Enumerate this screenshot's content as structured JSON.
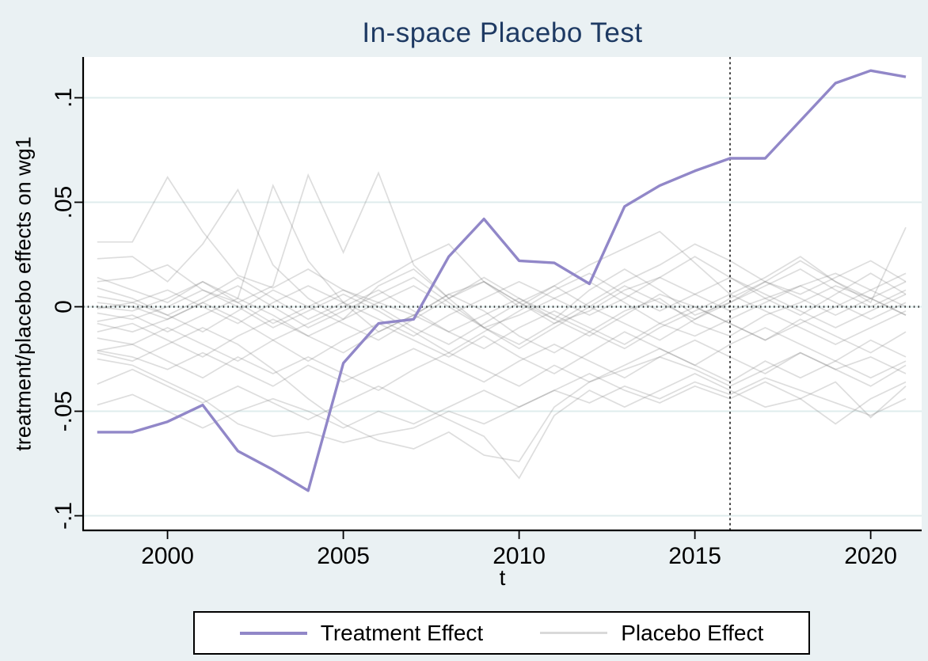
{
  "figure": {
    "title": "In-space Placebo Test",
    "x_axis_label": "t",
    "y_axis_label": "treatment/placebo effects on wg1"
  },
  "legend": {
    "treatment_label": "Treatment Effect",
    "placebo_label": "Placebo Effect"
  },
  "colors": {
    "background": "#eaf1f3",
    "plot_background": "#ffffff",
    "title_text": "#1e3a63",
    "axis_text": "#000000",
    "axis_line": "#000000",
    "gridline": "#dfeced",
    "treatment_line": "#9187c8",
    "placebo_line": "#d9d9d9",
    "reference_line": "#333333"
  },
  "chart_data": {
    "type": "line",
    "title": "In-space Placebo Test",
    "xlabel": "t",
    "ylabel": "treatment/placebo effects on wg1",
    "x": [
      1998,
      1999,
      2000,
      2001,
      2002,
      2003,
      2004,
      2005,
      2006,
      2007,
      2008,
      2009,
      2010,
      2011,
      2012,
      2013,
      2014,
      2015,
      2016,
      2017,
      2018,
      2019,
      2020,
      2021
    ],
    "x_ticks": [
      2000,
      2005,
      2010,
      2015,
      2020
    ],
    "y_ticks": [
      {
        "value": 0.1,
        "label": ".1"
      },
      {
        "value": 0.05,
        "label": ".05"
      },
      {
        "value": 0,
        "label": "0"
      },
      {
        "value": -0.05,
        "label": "-.05"
      },
      {
        "value": -0.1,
        "label": "-.1"
      }
    ],
    "xlim": [
      1997.6,
      2021.45
    ],
    "ylim": [
      -0.107,
      0.1195
    ],
    "grid": true,
    "legend_position": "bottom",
    "reference_lines": [
      {
        "orientation": "horizontal",
        "value": 0,
        "style": "dotted"
      },
      {
        "orientation": "vertical",
        "value": 2016,
        "style": "dotted"
      }
    ],
    "treatment": {
      "name": "Treatment Effect",
      "values": [
        -0.06,
        -0.06,
        -0.055,
        -0.047,
        -0.069,
        -0.078,
        -0.088,
        -0.027,
        -0.008,
        -0.006,
        0.024,
        0.042,
        0.022,
        0.021,
        0.011,
        0.048,
        0.058,
        0.065,
        0.071,
        0.071,
        0.089,
        0.107,
        0.113,
        0.11
      ]
    },
    "placebo": {
      "name": "Placebo Effect",
      "series": [
        [
          0.031,
          0.031,
          0.062,
          0.036,
          0.015,
          0.009,
          0.018,
          0.008,
          0.002,
          -0.004,
          0.006,
          0.012,
          0.002,
          -0.008,
          -0.002,
          0.008,
          0.014,
          0.006,
          -0.002,
          0.004,
          0.01,
          0.016,
          0.008,
          0.016
        ],
        [
          0.023,
          0.024,
          0.012,
          0.03,
          0.056,
          0.02,
          0.004,
          -0.006,
          0.01,
          0.018,
          0.004,
          -0.01,
          -0.018,
          -0.008,
          0.002,
          0.012,
          0.02,
          0.03,
          0.022,
          0.012,
          0.006,
          0.014,
          0.022,
          0.012
        ],
        [
          0.014,
          0.008,
          0.002,
          0.012,
          0.004,
          0.058,
          0.022,
          0.002,
          -0.012,
          -0.004,
          0.006,
          -0.002,
          -0.014,
          -0.022,
          -0.012,
          -0.002,
          0.004,
          -0.008,
          -0.014,
          -0.004,
          0.002,
          0.01,
          0.004,
          -0.004
        ],
        [
          0.012,
          0.014,
          0.02,
          0.008,
          0.002,
          0.01,
          0.063,
          0.026,
          0.064,
          0.02,
          0.004,
          0.012,
          0.002,
          -0.006,
          0.008,
          0.018,
          0.008,
          -0.004,
          0.002,
          0.012,
          0.022,
          0.012,
          0.004,
          0.012
        ],
        [
          0.009,
          0.004,
          -0.004,
          0.004,
          0.014,
          0.004,
          -0.006,
          0.002,
          0.012,
          0.022,
          0.03,
          0.012,
          0.0,
          0.01,
          0.02,
          0.028,
          0.036,
          0.021,
          0.006,
          0.014,
          0.024,
          0.012,
          0.002,
          0.038
        ],
        [
          0.005,
          0.002,
          0.008,
          0.0,
          -0.008,
          0.002,
          0.01,
          0.002,
          -0.006,
          -0.014,
          -0.004,
          0.004,
          0.012,
          0.004,
          -0.004,
          0.004,
          0.014,
          0.024,
          0.014,
          0.004,
          -0.004,
          0.006,
          0.016,
          0.006
        ],
        [
          0.002,
          0.0,
          -0.006,
          0.002,
          0.01,
          0.0,
          -0.01,
          -0.002,
          0.006,
          0.014,
          0.002,
          -0.01,
          -0.02,
          -0.01,
          0.0,
          0.01,
          0.002,
          -0.006,
          0.002,
          0.01,
          0.018,
          0.008,
          0.0,
          0.008
        ],
        [
          0.0,
          -0.002,
          0.004,
          0.012,
          0.002,
          -0.008,
          0.0,
          0.008,
          0.0,
          -0.01,
          -0.018,
          -0.008,
          0.002,
          0.01,
          0.0,
          -0.008,
          -0.016,
          -0.006,
          0.004,
          0.012,
          0.004,
          -0.004,
          0.004,
          -0.004
        ],
        [
          -0.001,
          0.002,
          -0.004,
          -0.012,
          -0.002,
          0.008,
          0.0,
          -0.008,
          -0.016,
          -0.006,
          0.004,
          0.014,
          0.004,
          -0.006,
          -0.014,
          -0.004,
          0.006,
          0.0,
          -0.008,
          -0.016,
          -0.008,
          0.0,
          0.008,
          0.0
        ],
        [
          -0.003,
          -0.006,
          0.0,
          0.008,
          0.0,
          -0.01,
          -0.002,
          0.006,
          -0.002,
          -0.012,
          -0.022,
          -0.012,
          -0.002,
          0.008,
          0.016,
          0.006,
          -0.002,
          0.006,
          0.014,
          0.006,
          -0.002,
          -0.01,
          -0.002,
          0.006
        ],
        [
          -0.007,
          -0.004,
          -0.012,
          -0.004,
          0.004,
          -0.004,
          -0.014,
          -0.006,
          0.002,
          0.01,
          0.0,
          -0.01,
          -0.004,
          0.004,
          0.012,
          0.002,
          -0.008,
          -0.014,
          -0.006,
          0.002,
          0.01,
          0.002,
          -0.006,
          0.002
        ],
        [
          -0.008,
          -0.012,
          -0.006,
          0.002,
          -0.006,
          -0.016,
          -0.008,
          0.0,
          0.008,
          -0.002,
          -0.012,
          -0.004,
          0.004,
          -0.004,
          -0.012,
          -0.02,
          -0.01,
          -0.002,
          0.006,
          -0.002,
          -0.01,
          -0.018,
          -0.01,
          -0.002
        ],
        [
          -0.012,
          -0.008,
          -0.016,
          -0.024,
          -0.014,
          -0.006,
          -0.014,
          -0.022,
          -0.012,
          -0.004,
          -0.012,
          -0.02,
          -0.01,
          -0.002,
          -0.01,
          -0.018,
          -0.008,
          0.0,
          -0.008,
          -0.016,
          -0.006,
          -0.014,
          -0.022,
          -0.012
        ],
        [
          -0.015,
          -0.018,
          -0.01,
          -0.018,
          -0.026,
          -0.016,
          -0.026,
          -0.016,
          -0.008,
          -0.016,
          -0.024,
          -0.014,
          -0.024,
          -0.032,
          -0.022,
          -0.012,
          -0.02,
          -0.028,
          -0.018,
          -0.01,
          -0.018,
          -0.026,
          -0.016,
          -0.024
        ],
        [
          -0.021,
          -0.024,
          -0.03,
          -0.022,
          -0.03,
          -0.038,
          -0.028,
          -0.036,
          -0.028,
          -0.02,
          -0.028,
          -0.036,
          -0.026,
          -0.018,
          -0.026,
          -0.034,
          -0.024,
          -0.016,
          -0.024,
          -0.032,
          -0.022,
          -0.03,
          -0.038,
          -0.028
        ],
        [
          -0.021,
          -0.018,
          -0.026,
          -0.034,
          -0.024,
          -0.032,
          -0.024,
          -0.032,
          -0.04,
          -0.03,
          -0.022,
          -0.03,
          -0.038,
          -0.028,
          -0.036,
          -0.028,
          -0.02,
          -0.028,
          -0.036,
          -0.026,
          -0.034,
          -0.026,
          -0.034,
          -0.026
        ],
        [
          -0.022,
          -0.026,
          -0.018,
          -0.01,
          -0.018,
          -0.03,
          -0.044,
          -0.056,
          -0.064,
          -0.068,
          -0.06,
          -0.071,
          -0.074,
          -0.048,
          -0.036,
          -0.03,
          -0.024,
          -0.03,
          -0.038,
          -0.03,
          -0.022,
          -0.03,
          -0.024,
          -0.032
        ],
        [
          -0.025,
          -0.028,
          -0.036,
          -0.044,
          -0.056,
          -0.062,
          -0.06,
          -0.065,
          -0.061,
          -0.058,
          -0.05,
          -0.056,
          -0.048,
          -0.04,
          -0.046,
          -0.038,
          -0.044,
          -0.036,
          -0.042,
          -0.034,
          -0.04,
          -0.046,
          -0.052,
          -0.044
        ],
        [
          -0.037,
          -0.03,
          -0.038,
          -0.046,
          -0.038,
          -0.046,
          -0.054,
          -0.046,
          -0.038,
          -0.046,
          -0.054,
          -0.062,
          -0.082,
          -0.052,
          -0.04,
          -0.048,
          -0.04,
          -0.032,
          -0.04,
          -0.048,
          -0.044,
          -0.056,
          -0.044,
          -0.036
        ],
        [
          -0.047,
          -0.042,
          -0.05,
          -0.058,
          -0.05,
          -0.044,
          -0.05,
          -0.058,
          -0.05,
          -0.056,
          -0.048,
          -0.04,
          -0.048,
          -0.04,
          -0.032,
          -0.04,
          -0.046,
          -0.038,
          -0.044,
          -0.036,
          -0.044,
          -0.036,
          -0.053,
          -0.038
        ]
      ]
    }
  }
}
